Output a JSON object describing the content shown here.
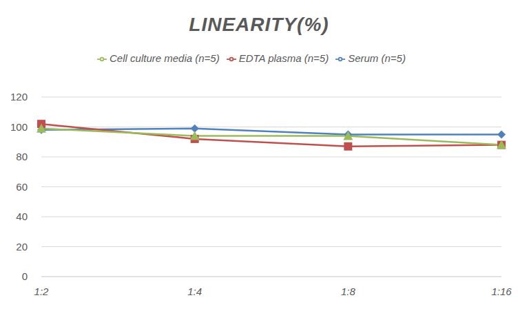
{
  "chart_data": {
    "type": "line",
    "title": "LINEARITY(%)",
    "categories": [
      "1:2",
      "1:4",
      "1:8",
      "1:16"
    ],
    "series": [
      {
        "name": "Serum (n=5)",
        "color": "#4f81bd",
        "marker": "diamond",
        "values": [
          98,
          99,
          95,
          95
        ]
      },
      {
        "name": "EDTA plasma (n=5)",
        "color": "#c0504d",
        "marker": "square",
        "values": [
          102,
          92,
          87,
          88
        ]
      },
      {
        "name": "Cell culture media (n=5)",
        "color": "#9bbb59",
        "marker": "triangle",
        "values": [
          99,
          94,
          94,
          88
        ]
      }
    ],
    "ylim": [
      0,
      120
    ],
    "yticks": [
      0,
      20,
      40,
      60,
      80,
      100,
      120
    ],
    "grid": true,
    "legend": "top"
  }
}
